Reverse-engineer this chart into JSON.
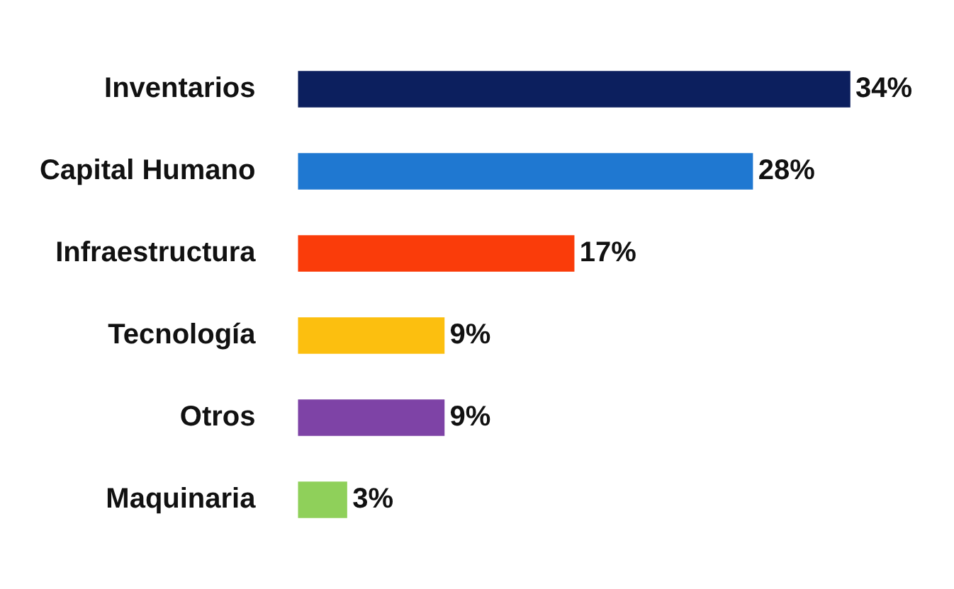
{
  "chart_data": {
    "type": "bar",
    "orientation": "horizontal",
    "categories": [
      "Inventarios",
      "Capital Humano",
      "Infraestructura",
      "Tecnología",
      "Otros",
      "Maquinaria"
    ],
    "values": [
      34,
      28,
      17,
      9,
      9,
      3
    ],
    "colors": [
      "#0c1f5e",
      "#1f78d1",
      "#fa3c0a",
      "#fcbf0f",
      "#7e43a6",
      "#8fd05a"
    ],
    "value_labels": [
      "34%",
      "28%",
      "17%",
      "9%",
      "9%",
      "3%"
    ],
    "legend": false
  }
}
